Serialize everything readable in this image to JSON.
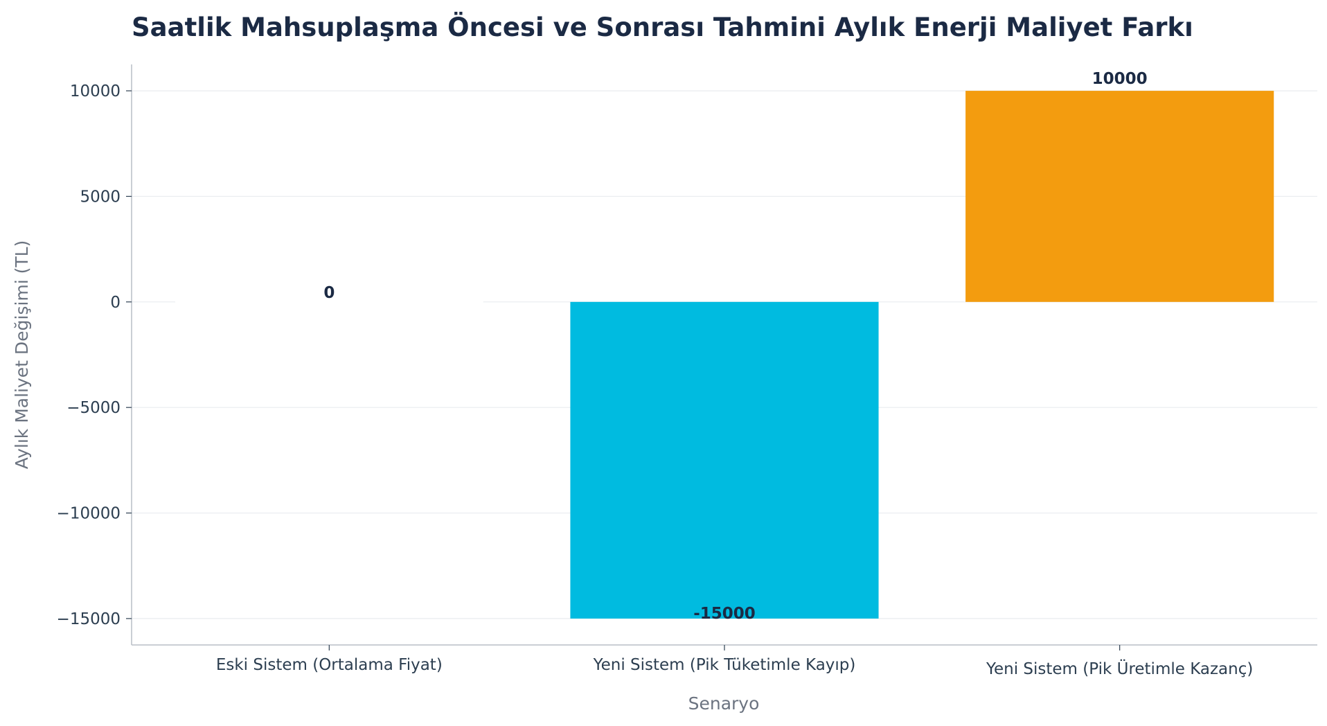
{
  "chart_data": {
    "type": "bar",
    "title": "Saatlik Mahsuplaşma Öncesi ve Sonrası Tahmini Aylık Enerji Maliyet Farkı",
    "xlabel": "Senaryo",
    "ylabel": "Aylık Maliyet Değişimi (TL)",
    "categories": [
      "Eski Sistem (Ortalama Fiyat)",
      "Yeni Sistem (Pik Tüketimle Kayıp)",
      "Yeni Sistem (Pik Üretimle Kazanç)"
    ],
    "values": [
      0,
      -15000,
      10000
    ],
    "value_labels": [
      "0",
      "-15000",
      "10000"
    ],
    "colors": [
      "#7f8c8d",
      "#00bbe0",
      "#f39c0f"
    ],
    "ylim": [
      -16250,
      11250
    ],
    "yticks": [
      10000,
      5000,
      0,
      -5000,
      -10000,
      -15000
    ],
    "ytick_labels": [
      "10000",
      "5000",
      "0",
      "−5000",
      "−10000",
      "−15000"
    ],
    "grid": true,
    "legend": "none"
  }
}
